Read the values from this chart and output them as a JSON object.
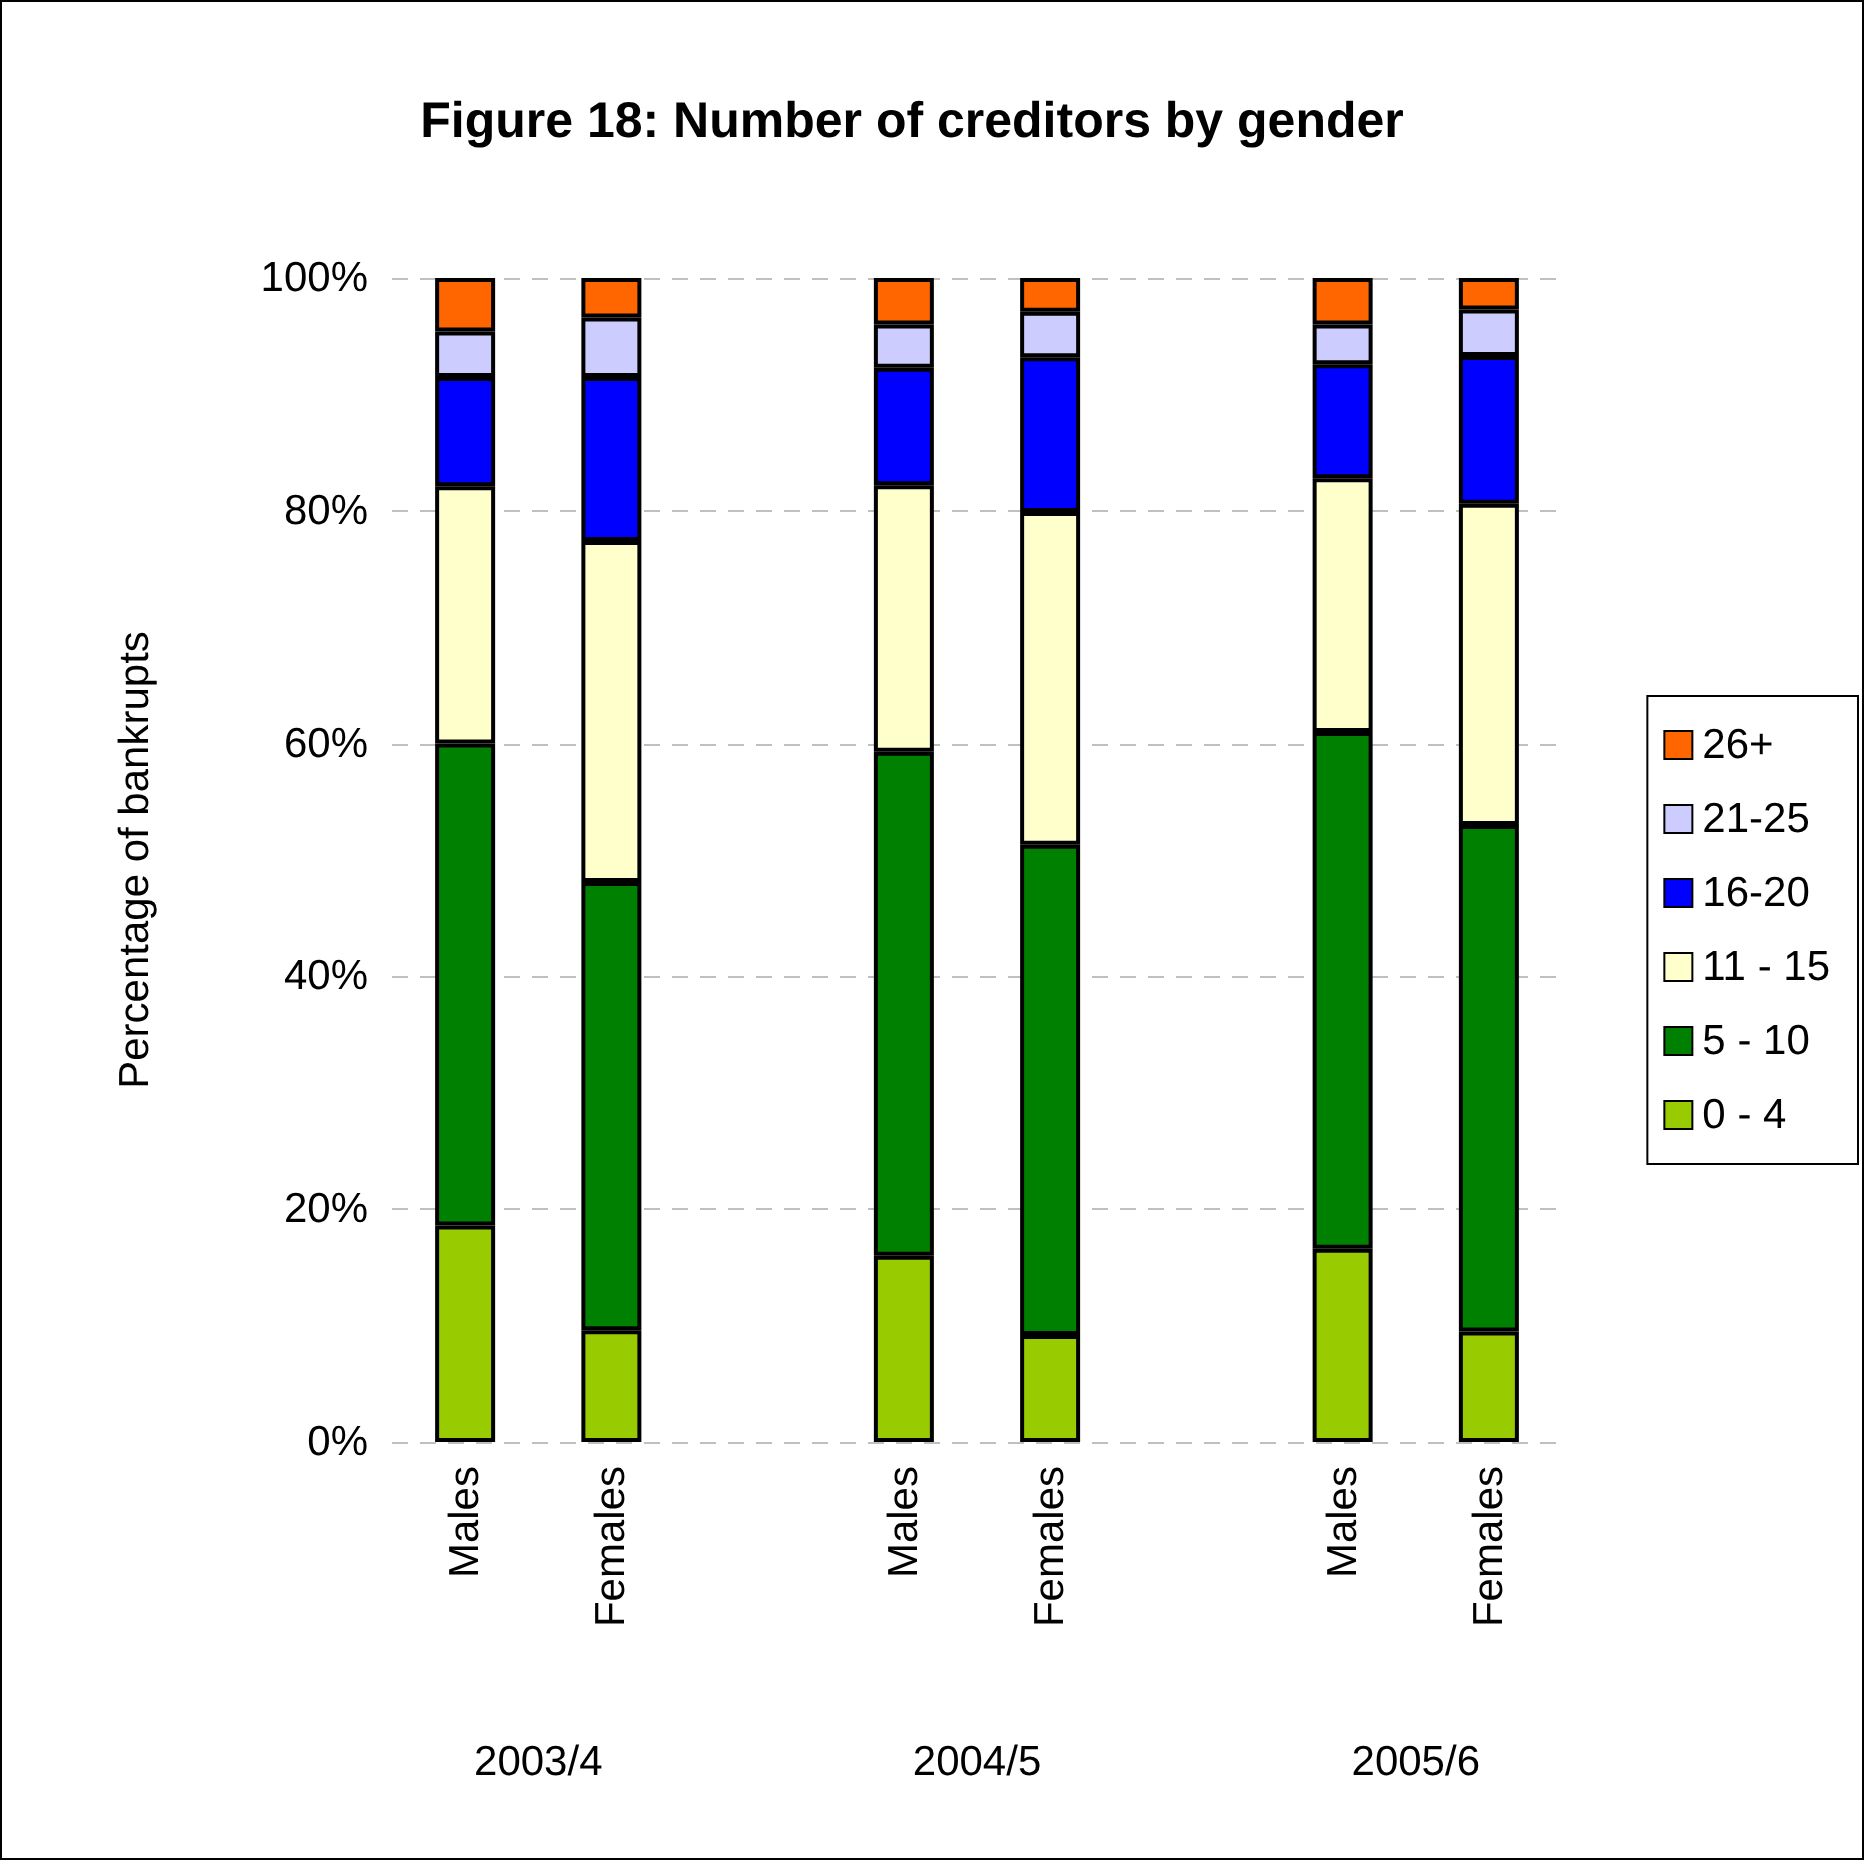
{
  "chart_data": {
    "type": "bar",
    "title": "Figure 18: Number of creditors by gender",
    "ylabel": "Percentage of bankrupts",
    "categories": [
      "Males",
      "Females",
      null,
      "Males",
      "Females",
      null,
      "Males",
      "Females"
    ],
    "annotations": [
      "2003/4",
      "2004/5",
      "2005/6"
    ],
    "stacked": true,
    "ylim": [
      0,
      100
    ],
    "yticks": [
      {
        "value": 0,
        "label": "0%"
      },
      {
        "value": 20,
        "label": "20%"
      },
      {
        "value": 40,
        "label": "40%"
      },
      {
        "value": 60,
        "label": "60%"
      },
      {
        "value": 80,
        "label": "80%"
      },
      {
        "value": 100,
        "label": "100%"
      }
    ],
    "grid": "y",
    "legend": "right",
    "series": [
      {
        "name": "0 - 4",
        "color": "#99cc00",
        "values": [
          18.6,
          9.6,
          null,
          16.0,
          9.2,
          null,
          16.6,
          9.5
        ]
      },
      {
        "name": "5 - 10",
        "color": "#008000",
        "values": [
          41.4,
          38.5,
          null,
          43.3,
          42.1,
          null,
          44.4,
          43.5
        ]
      },
      {
        "name": "11 - 15",
        "color": "#ffffcc",
        "values": [
          22.1,
          29.3,
          null,
          22.9,
          28.6,
          null,
          21.8,
          27.6
        ]
      },
      {
        "name": "16-20",
        "color": "#0000ff",
        "values": [
          9.4,
          14.1,
          null,
          10.1,
          13.3,
          null,
          9.8,
          12.7
        ]
      },
      {
        "name": "21-25",
        "color": "#ccccff",
        "values": [
          3.9,
          5.1,
          null,
          3.7,
          3.9,
          null,
          3.4,
          4.0
        ]
      },
      {
        "name": "26+",
        "color": "#ff6600",
        "values": [
          4.6,
          3.4,
          null,
          4.0,
          2.9,
          null,
          4.0,
          2.7
        ]
      }
    ]
  }
}
